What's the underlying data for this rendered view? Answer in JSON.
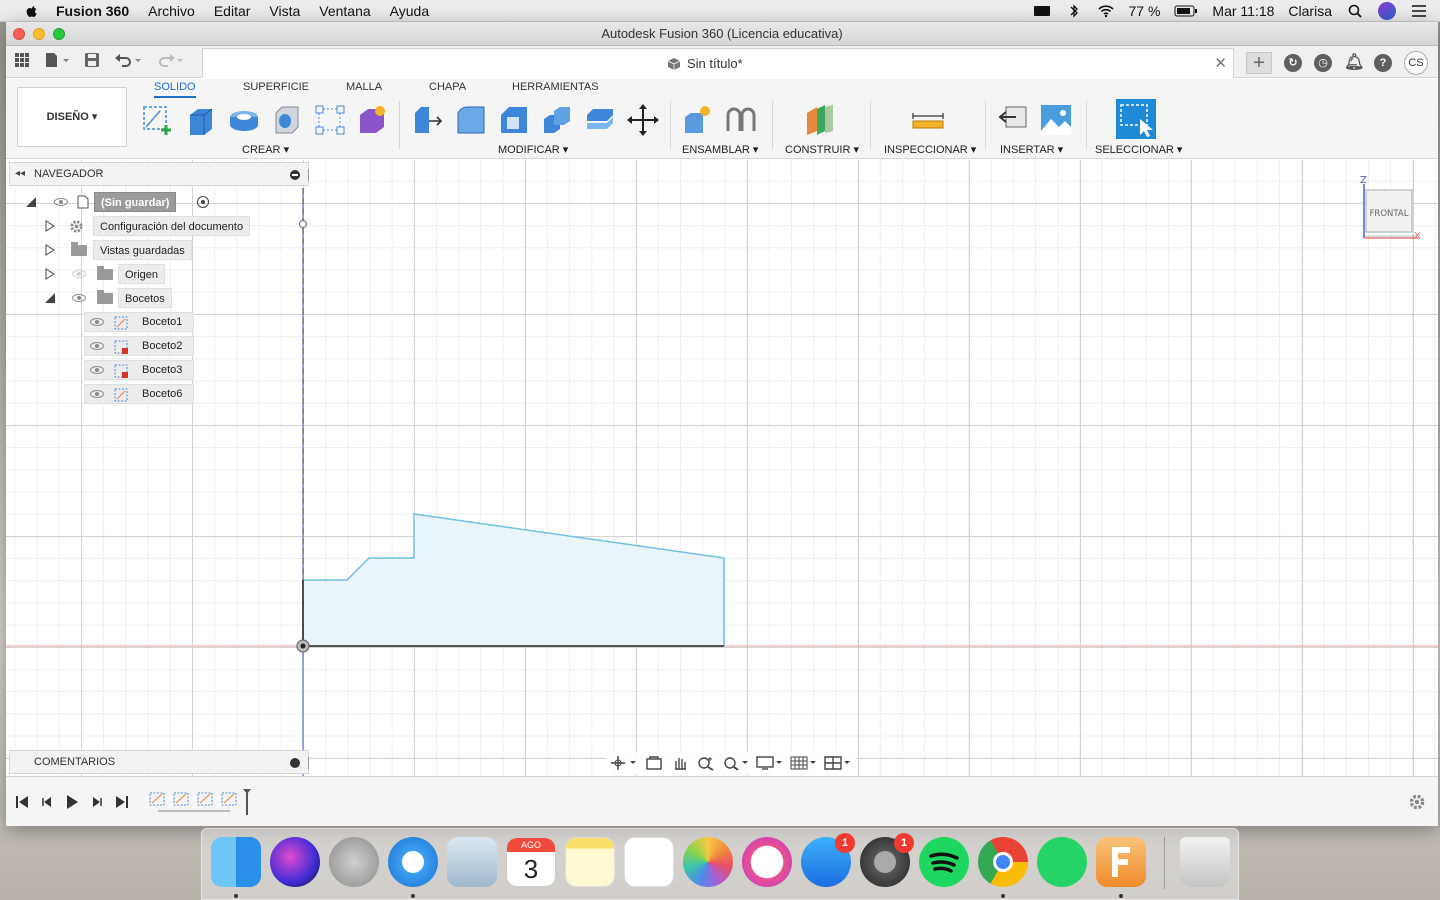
{
  "menubar": {
    "app": "Fusion 360",
    "items": [
      "Archivo",
      "Editar",
      "Vista",
      "Ventana",
      "Ayuda"
    ],
    "battery": "77 %",
    "clock": "Mar 11:18",
    "user": "Clarisa"
  },
  "window": {
    "title": "Autodesk Fusion 360 (Licencia educativa)"
  },
  "app": {
    "document_tab": "Sin título*",
    "avatar_initials": "CS",
    "workspace": "DISEÑO",
    "tabs": [
      "SOLIDO",
      "SUPERFICIE",
      "MALLA",
      "CHAPA",
      "HERRAMIENTAS"
    ],
    "active_tab": "SOLIDO",
    "groups": {
      "crear": "CREAR",
      "modificar": "MODIFICAR",
      "ensamblar": "ENSAMBLAR",
      "construir": "CONSTRUIR",
      "inspeccionar": "INSPECCIONAR",
      "insertar": "INSERTAR",
      "seleccionar": "SELECCIONAR"
    }
  },
  "navigator": {
    "title": "NAVEGADOR",
    "root": "(Sin guardar)",
    "items": [
      {
        "label": "Configuración del documento"
      },
      {
        "label": "Vistas guardadas"
      },
      {
        "label": "Origen"
      },
      {
        "label": "Bocetos"
      }
    ],
    "sketches": [
      "Boceto1",
      "Boceto2",
      "Boceto3",
      "Boceto6"
    ]
  },
  "comments": {
    "title": "COMENTARIOS"
  },
  "viewcube": {
    "face": "FRONTAL",
    "axis_z": "Z",
    "axis_x": "X"
  },
  "dock": {
    "calendar_month": "AGO",
    "calendar_day": "3",
    "appstore_badge": "1",
    "prefs_badge": "1"
  },
  "colors": {
    "accent": "#1f6fd1",
    "sketch_line": "#6ec1df",
    "sketch_fill": "#eaf5fb",
    "x_axis": "#e07a7a",
    "z_axis": "#4a5fc7"
  }
}
